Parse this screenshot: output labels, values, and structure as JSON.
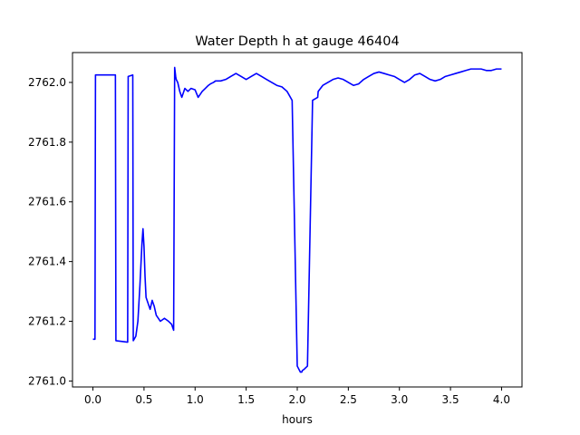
{
  "chart_data": {
    "type": "line",
    "title": "Water Depth h at gauge 46404",
    "xlabel": "hours",
    "ylabel": "",
    "xlim": [
      -0.2,
      4.2
    ],
    "ylim": [
      2760.98,
      2762.1
    ],
    "xticks": [
      0.0,
      0.5,
      1.0,
      1.5,
      2.0,
      2.5,
      3.0,
      3.5,
      4.0
    ],
    "xtick_labels": [
      "0.0",
      "0.5",
      "1.0",
      "1.5",
      "2.0",
      "2.5",
      "3.0",
      "3.5",
      "4.0"
    ],
    "yticks": [
      2761.0,
      2761.2,
      2761.4,
      2761.6,
      2761.8,
      2762.0
    ],
    "ytick_labels": [
      "2761.0",
      "2761.2",
      "2761.4",
      "2761.6",
      "2761.8",
      "2762.0"
    ],
    "grid": false,
    "series": [
      {
        "color": "#0000ff",
        "x": [
          0.0,
          0.02,
          0.025,
          0.22,
          0.225,
          0.34,
          0.345,
          0.39,
          0.395,
          0.42,
          0.44,
          0.46,
          0.48,
          0.49,
          0.5,
          0.51,
          0.52,
          0.54,
          0.56,
          0.58,
          0.6,
          0.62,
          0.64,
          0.66,
          0.7,
          0.74,
          0.77,
          0.79,
          0.8,
          0.81,
          0.815,
          0.83,
          0.85,
          0.87,
          0.9,
          0.93,
          0.96,
          1.0,
          1.03,
          1.07,
          1.1,
          1.13,
          1.15,
          1.18,
          1.2,
          1.25,
          1.3,
          1.35,
          1.4,
          1.45,
          1.5,
          1.55,
          1.6,
          1.65,
          1.7,
          1.75,
          1.8,
          1.85,
          1.9,
          1.95,
          2.0,
          2.03,
          2.045,
          2.05,
          2.07,
          2.1,
          2.15,
          2.2,
          2.205,
          2.25,
          2.3,
          2.35,
          2.4,
          2.45,
          2.5,
          2.55,
          2.6,
          2.65,
          2.7,
          2.75,
          2.8,
          2.85,
          2.9,
          2.95,
          3.0,
          3.05,
          3.1,
          3.15,
          3.2,
          3.25,
          3.3,
          3.35,
          3.4,
          3.45,
          3.5,
          3.55,
          3.6,
          3.65,
          3.7,
          3.75,
          3.8,
          3.85,
          3.9,
          3.95,
          4.0
        ],
        "y": [
          2761.14,
          2761.14,
          2762.025,
          2762.025,
          2761.135,
          2761.13,
          2762.02,
          2762.025,
          2761.135,
          2761.15,
          2761.2,
          2761.32,
          2761.46,
          2761.51,
          2761.45,
          2761.35,
          2761.28,
          2761.26,
          2761.24,
          2761.27,
          2761.25,
          2761.22,
          2761.21,
          2761.2,
          2761.21,
          2761.2,
          2761.19,
          2761.17,
          2762.05,
          2762.02,
          2762.01,
          2762.0,
          2761.97,
          2761.95,
          2761.98,
          2761.97,
          2761.98,
          2761.975,
          2761.95,
          2761.97,
          2761.98,
          2761.99,
          2761.995,
          2762.0,
          2762.005,
          2762.005,
          2762.01,
          2762.02,
          2762.03,
          2762.02,
          2762.01,
          2762.02,
          2762.03,
          2762.02,
          2762.01,
          2762.0,
          2761.99,
          2761.985,
          2761.97,
          2761.94,
          2761.05,
          2761.03,
          2761.03,
          2761.035,
          2761.04,
          2761.05,
          2761.94,
          2761.95,
          2761.97,
          2761.99,
          2762.0,
          2762.01,
          2762.015,
          2762.01,
          2762.0,
          2761.99,
          2761.995,
          2762.01,
          2762.02,
          2762.03,
          2762.035,
          2762.03,
          2762.025,
          2762.02,
          2762.01,
          2762.0,
          2762.01,
          2762.025,
          2762.03,
          2762.02,
          2762.01,
          2762.005,
          2762.01,
          2762.02,
          2762.025,
          2762.03,
          2762.035,
          2762.04,
          2762.045,
          2762.045,
          2762.045,
          2762.04,
          2762.04,
          2762.045,
          2762.045
        ]
      }
    ]
  }
}
